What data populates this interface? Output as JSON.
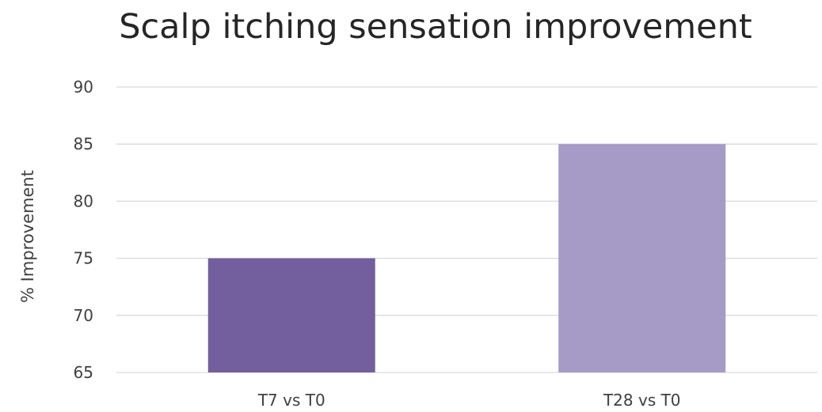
{
  "chart_data": {
    "type": "bar",
    "title": "Scalp itching sensation improvement",
    "xlabel": "",
    "ylabel": "% Improvement",
    "categories": [
      "T7 vs T0",
      "T28 vs T0"
    ],
    "values": [
      75,
      85
    ],
    "bar_colors": [
      "#735e9e",
      "#a59bc6"
    ],
    "ylim": [
      65,
      90
    ],
    "yticks": [
      90,
      85,
      80,
      75,
      70,
      65
    ],
    "grid": true,
    "legend": "none"
  }
}
